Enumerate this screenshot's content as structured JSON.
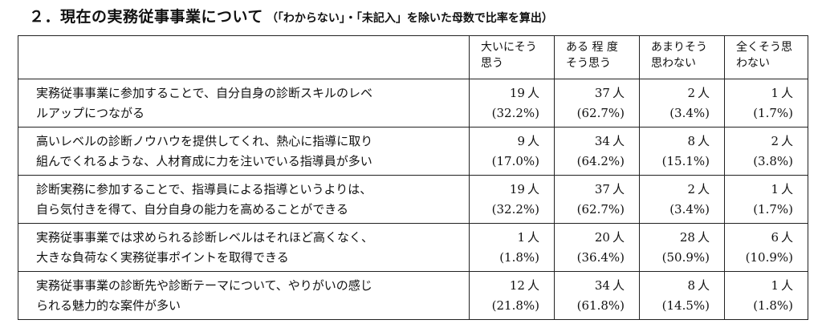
{
  "heading": {
    "main": "２．現在の実務従事事業について",
    "note": "（「わからない」・「未記入」を除いた母数で比率を算出）"
  },
  "table": {
    "columns": [
      {
        "line1": "大いにそう",
        "line2": "思う"
      },
      {
        "line1": "ある 程 度",
        "line2": "そう思う"
      },
      {
        "line1": "あまりそう",
        "line2": "思わない"
      },
      {
        "line1": "全くそう思",
        "line2": "わない"
      }
    ],
    "unit": "人",
    "rows": [
      {
        "item_line1": "実務従事事業に参加することで、自分自身の診断スキルのレベ",
        "item_line2": "ルアップにつながる",
        "values": [
          {
            "count": "19",
            "pct": "(32.2%)"
          },
          {
            "count": "37",
            "pct": "(62.7%)"
          },
          {
            "count": "2",
            "pct": "(3.4%)"
          },
          {
            "count": "1",
            "pct": "(1.7%)"
          }
        ]
      },
      {
        "item_line1": "高いレベルの診断ノウハウを提供してくれ、熱心に指導に取り",
        "item_line2": "組んでくれるような、人材育成に力を注いでいる指導員が多い",
        "values": [
          {
            "count": "9",
            "pct": "(17.0%)"
          },
          {
            "count": "34",
            "pct": "(64.2%)"
          },
          {
            "count": "8",
            "pct": "(15.1%)"
          },
          {
            "count": "2",
            "pct": "(3.8%)"
          }
        ]
      },
      {
        "item_line1": "診断実務に参加することで、指導員による指導というよりは、",
        "item_line2": "自ら気付きを得て、自分自身の能力を高めることができる",
        "values": [
          {
            "count": "19",
            "pct": "(32.2%)"
          },
          {
            "count": "37",
            "pct": "(62.7%)"
          },
          {
            "count": "2",
            "pct": "(3.4%)"
          },
          {
            "count": "1",
            "pct": "(1.7%)"
          }
        ]
      },
      {
        "item_line1": "実務従事事業では求められる診断レベルはそれほど高くなく、",
        "item_line2": "大きな負荷なく実務従事ポイントを取得できる",
        "values": [
          {
            "count": "1",
            "pct": "(1.8%)"
          },
          {
            "count": "20",
            "pct": "(36.4%)"
          },
          {
            "count": "28",
            "pct": "(50.9%)"
          },
          {
            "count": "6",
            "pct": "(10.9%)"
          }
        ]
      },
      {
        "item_line1": "実務従事事業の診断先や診断テーマについて、やりがいの感じ",
        "item_line2": "られる魅力的な案件が多い",
        "values": [
          {
            "count": "12",
            "pct": "(21.8%)"
          },
          {
            "count": "34",
            "pct": "(61.8%)"
          },
          {
            "count": "8",
            "pct": "(14.5%)"
          },
          {
            "count": "1",
            "pct": "(1.8%)"
          }
        ]
      }
    ]
  }
}
